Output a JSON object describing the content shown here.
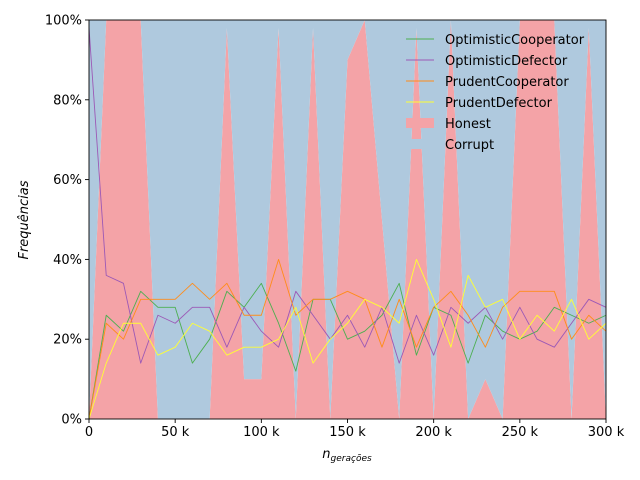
{
  "chart_data": {
    "type": "area",
    "xlabel": "n",
    "xlabel_sub": "gerações",
    "ylabel": "Frequências",
    "xlim": [
      0,
      300000
    ],
    "ylim": [
      0,
      100
    ],
    "x_ticks": [
      {
        "value": 0,
        "label": "0"
      },
      {
        "value": 50000,
        "label": "50 k"
      },
      {
        "value": 100000,
        "label": "100 k"
      },
      {
        "value": 150000,
        "label": "150 k"
      },
      {
        "value": 200000,
        "label": "200 k"
      },
      {
        "value": 250000,
        "label": "250 k"
      },
      {
        "value": 300000,
        "label": "300 k"
      }
    ],
    "y_ticks": [
      {
        "value": 0,
        "label": "0%"
      },
      {
        "value": 20,
        "label": "20%"
      },
      {
        "value": 40,
        "label": "40%"
      },
      {
        "value": 60,
        "label": "60%"
      },
      {
        "value": 80,
        "label": "80%"
      },
      {
        "value": 100,
        "label": "100%"
      }
    ],
    "legend_position": "top-right",
    "x": [
      0,
      10000,
      20000,
      30000,
      40000,
      50000,
      60000,
      70000,
      80000,
      90000,
      100000,
      110000,
      120000,
      130000,
      140000,
      150000,
      160000,
      170000,
      180000,
      190000,
      200000,
      210000,
      220000,
      230000,
      240000,
      250000,
      260000,
      270000,
      280000,
      290000,
      300000
    ],
    "stacked_areas": [
      {
        "name": "Honest",
        "color": "#f4a3a7",
        "values": [
          0,
          100,
          100,
          100,
          0,
          0,
          0,
          0,
          98,
          10,
          10,
          98,
          0,
          98,
          0,
          90,
          100,
          50,
          0,
          98,
          0,
          100,
          0,
          10,
          0,
          100,
          100,
          100,
          0,
          98,
          0
        ]
      },
      {
        "name": "Corrupt",
        "color": "#afc9de",
        "values": [
          100,
          0,
          0,
          0,
          100,
          100,
          100,
          100,
          2,
          90,
          90,
          2,
          100,
          2,
          100,
          10,
          0,
          50,
          100,
          2,
          100,
          0,
          100,
          90,
          100,
          0,
          0,
          0,
          100,
          2,
          100
        ]
      }
    ],
    "series": [
      {
        "name": "OptimisticCooperator",
        "color": "#4caf50",
        "values": [
          0,
          26,
          22,
          32,
          28,
          28,
          14,
          20,
          32,
          28,
          34,
          24,
          12,
          30,
          30,
          20,
          22,
          26,
          34,
          16,
          28,
          26,
          14,
          26,
          22,
          20,
          22,
          28,
          26,
          24,
          26
        ]
      },
      {
        "name": "OptimisticDefector",
        "color": "#9c59b6",
        "values": [
          98,
          36,
          34,
          14,
          26,
          24,
          28,
          28,
          18,
          28,
          22,
          18,
          32,
          26,
          20,
          26,
          18,
          28,
          14,
          26,
          16,
          28,
          24,
          28,
          20,
          28,
          20,
          18,
          24,
          30,
          28
        ]
      },
      {
        "name": "PrudentCooperator",
        "color": "#ff8c1a",
        "values": [
          0,
          24,
          20,
          30,
          30,
          30,
          34,
          30,
          34,
          26,
          26,
          40,
          26,
          30,
          30,
          32,
          30,
          18,
          30,
          18,
          28,
          32,
          26,
          18,
          28,
          32,
          32,
          32,
          20,
          26,
          22
        ]
      },
      {
        "name": "PrudentDefector",
        "color": "#ffff33",
        "values": [
          0,
          14,
          24,
          24,
          16,
          18,
          24,
          22,
          16,
          18,
          18,
          20,
          28,
          14,
          20,
          24,
          30,
          28,
          24,
          40,
          30,
          18,
          36,
          28,
          30,
          20,
          26,
          22,
          30,
          20,
          24
        ]
      }
    ]
  }
}
